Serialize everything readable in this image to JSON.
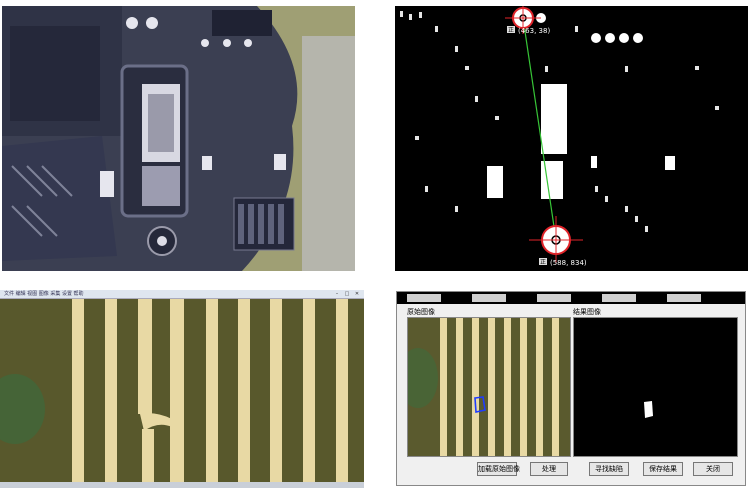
{
  "colors": {
    "accent_red": "#e0242a",
    "accent_green": "#37c537",
    "detect_blue": "#1f3cff",
    "pcb_dark": "#3b3f52",
    "pcb_yellow": "#b1b07a",
    "trace_gold": "#e8d9a4"
  },
  "threshold_view": {
    "marker_top": {
      "label": "(463, 38)",
      "badge": "正"
    },
    "marker_bottom": {
      "label": "(588, 834)",
      "badge": "正"
    }
  },
  "viewer_window": {
    "menu_text": "文件 编辑 视图 图像 采集 设置 帮助"
  },
  "defect_tool": {
    "original_group_label": "原始图像",
    "result_group_label": "结果图像",
    "buttons": {
      "load": "加载原始图像",
      "process": "处理",
      "find_defect": "寻找缺陷",
      "save": "保存结果",
      "close": "关闭"
    }
  }
}
